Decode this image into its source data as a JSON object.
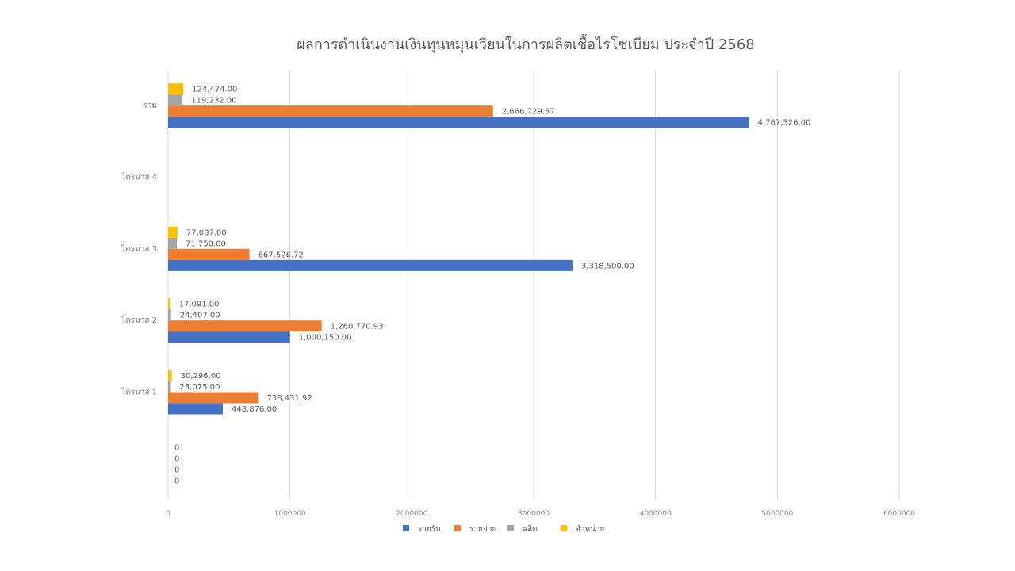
{
  "chart_data": {
    "type": "bar",
    "orientation": "horizontal",
    "title": "ผลการดำเนินงานเงินทุนหมุนเวียนในการผลิตเชื้อไรโซเบียม ประจำปี 2568",
    "categories": [
      "",
      "ไตรมาส 1",
      "ไตรมาส 2",
      "ไตรมาส 3",
      "ไตรมาส 4",
      "รวม"
    ],
    "series": [
      {
        "name": "รายรับ",
        "color": "#4472c4",
        "values": [
          0,
          448876,
          1000150,
          3318500,
          null,
          4767526
        ],
        "labels": [
          "0",
          "448,876.00",
          "1,000,150.00",
          "3,318,500.00",
          "",
          "4,767,526.00"
        ]
      },
      {
        "name": "รายจ่าย",
        "color": "#ed7d31",
        "values": [
          0,
          738431.92,
          1260770.93,
          667526.72,
          null,
          2666729.57
        ],
        "labels": [
          "0",
          "738,431.92",
          "1,260,770.93",
          "667,526.72",
          "",
          "2,666,729.57"
        ]
      },
      {
        "name": "ผลิต",
        "color": "#a5a5a5",
        "values": [
          0,
          23075,
          24407,
          71750,
          null,
          119232
        ],
        "labels": [
          "0",
          "23,075.00",
          "24,407.00",
          "71,750.00",
          "",
          "119,232.00"
        ]
      },
      {
        "name": "จำหน่าย",
        "color": "#ffc000",
        "values": [
          0,
          30296,
          17091,
          77087,
          null,
          124474
        ],
        "labels": [
          "0",
          "30,296.00",
          "17,091.00",
          "77,087.00",
          "",
          "124,474.00"
        ]
      }
    ],
    "xlim": [
      0,
      6000000
    ],
    "xticks": [
      "0",
      "1000000",
      "2000000",
      "3000000",
      "4000000",
      "5000000",
      "6000000"
    ],
    "grid": true,
    "legend": "bottom"
  }
}
